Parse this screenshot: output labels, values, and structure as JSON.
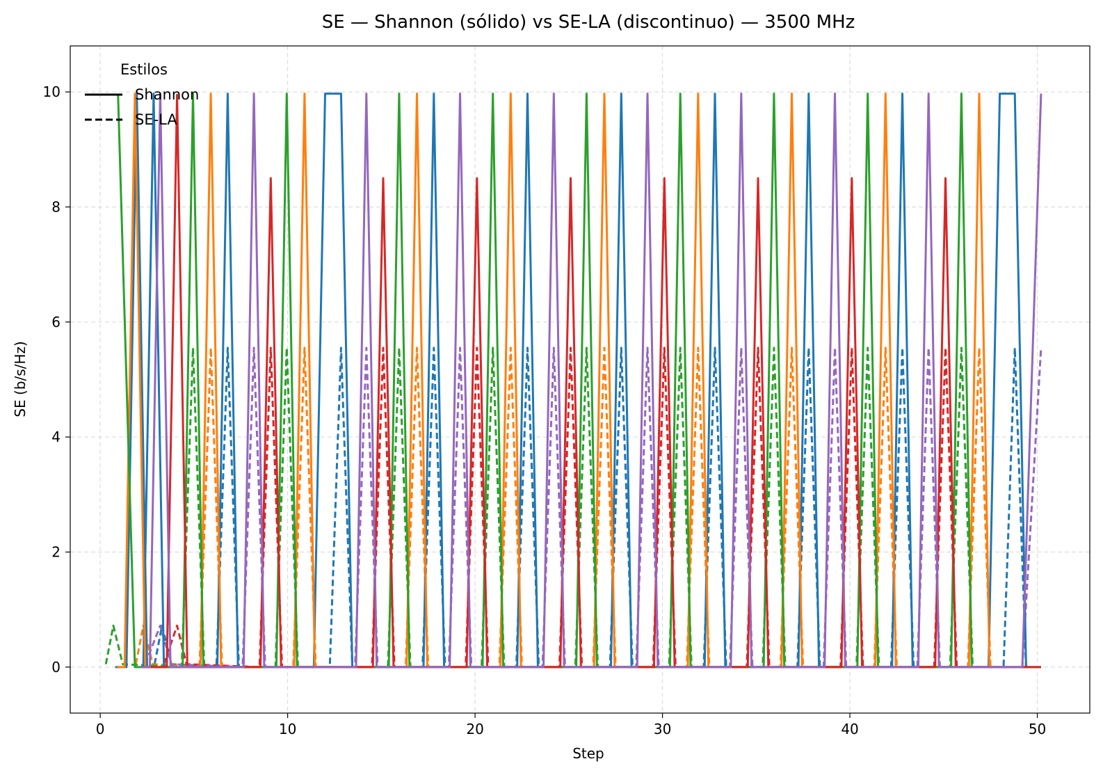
{
  "chart_data": {
    "type": "line",
    "title": "SE — Shannon (sólido) vs SE-LA (discontinuo) — 3500 MHz",
    "xlabel": "Step",
    "ylabel": "SE (b/s/Hz)",
    "xlim": [
      -1.6,
      52.8
    ],
    "ylim": [
      -0.8,
      10.8
    ],
    "xticks": [
      0,
      10,
      20,
      30,
      40,
      50
    ],
    "yticks": [
      0,
      2,
      4,
      6,
      8,
      10
    ],
    "grid": true,
    "legend": {
      "title": "Estilos",
      "placement": "top-left",
      "entries": [
        {
          "label": "Shannon",
          "style": "solid"
        },
        {
          "label": "SE-LA",
          "style": "dashed"
        }
      ]
    },
    "colors": [
      "#1f77b4",
      "#ff7f0e",
      "#2ca02c",
      "#d62728",
      "#9467bd"
    ],
    "shannon_peak": 9.97,
    "shannon_red_peak": 8.5,
    "sela_peak": 5.55,
    "sela_start_peak": 0.72,
    "series": [
      {
        "color": "#1f77b4",
        "shannon_peaks": [
          1.95,
          2.85,
          6.8,
          17.8,
          22.8,
          27.8,
          32.8,
          37.8,
          42.8
        ],
        "shannon_plateaus": [
          [
            12,
            12.85
          ],
          [
            48,
            48.8
          ]
        ],
        "shannon_first": 0.8,
        "shannon_last": 49.8,
        "sela_peaks": [
          3.6,
          6.8,
          12.85,
          17.8,
          22.8,
          27.8,
          32.8,
          37.8,
          42.8,
          48.8
        ]
      },
      {
        "color": "#ff7f0e",
        "shannon_peaks": [
          1.85,
          5.9,
          10.9,
          16.9,
          21.9,
          26.9,
          31.9,
          36.9,
          41.9,
          46.9
        ],
        "shannon_first": 0.9,
        "shannon_last": 47.8,
        "sela_peaks": [
          2.6,
          5.9,
          10.9,
          16.9,
          21.9,
          26.9,
          31.9,
          36.9,
          41.9,
          46.9
        ]
      },
      {
        "color": "#2ca02c",
        "shannon_peaks": [
          0.95,
          4.95,
          9.95,
          15.95,
          20.95,
          25.95,
          30.95,
          35.95,
          40.95,
          45.95
        ],
        "shannon_first": 0.95,
        "shannon_last": 50.2,
        "sela_peaks": [
          1.0,
          4.95,
          9.95,
          15.95,
          20.95,
          25.95,
          30.95,
          35.95,
          40.95,
          45.95
        ]
      },
      {
        "color": "#d62728",
        "shannon_peaks": [
          4.1,
          9.1,
          15.1,
          20.1,
          25.1,
          30.1,
          35.1,
          40.1,
          45.1
        ],
        "shannon_first": 2.2,
        "shannon_last": 50.2,
        "sela_peaks": [
          4.1,
          9.1,
          15.1,
          20.1,
          25.1,
          30.1,
          35.1,
          40.1,
          45.1
        ]
      },
      {
        "color": "#9467bd",
        "shannon_peaks": [
          3.2,
          8.2,
          14.2,
          19.2,
          24.2,
          29.2,
          34.2,
          39.2,
          44.2
        ],
        "shannon_first": 2.2,
        "shannon_last": 50.2,
        "shannon_end_rise": [
          49.2,
          50.2
        ],
        "sela_peaks": [
          3.2,
          8.2,
          14.2,
          19.2,
          24.2,
          29.2,
          34.2,
          39.2,
          44.2
        ],
        "sela_end_rise": [
          49.2,
          50.2
        ]
      }
    ]
  }
}
